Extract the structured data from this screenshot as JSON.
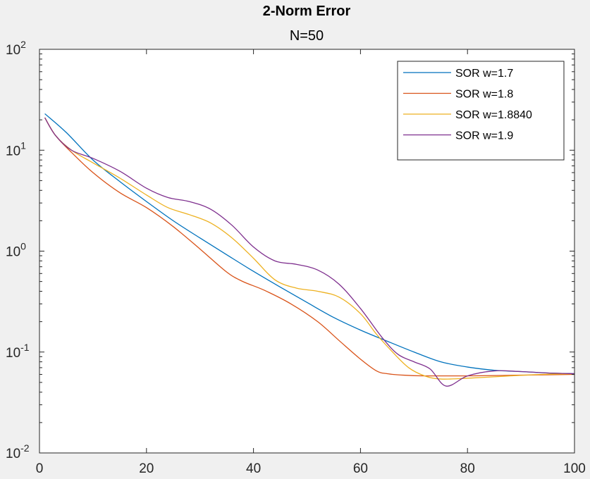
{
  "chart_data": {
    "type": "line",
    "title": "2-Norm Error",
    "subtitle": "N=50",
    "xlabel": "",
    "ylabel": "",
    "xlim": [
      0,
      100
    ],
    "ylim": [
      0.01,
      100
    ],
    "yscale": "log",
    "grid": false,
    "legend_position": "top-right",
    "x_ticks": [
      0,
      20,
      40,
      60,
      80,
      100
    ],
    "y_ticks": [
      {
        "value": 0.01,
        "base": "10",
        "exp": "-2"
      },
      {
        "value": 0.1,
        "base": "10",
        "exp": "-1"
      },
      {
        "value": 1,
        "base": "10",
        "exp": "0"
      },
      {
        "value": 10,
        "base": "10",
        "exp": "1"
      },
      {
        "value": 100,
        "base": "10",
        "exp": "2"
      }
    ],
    "series": [
      {
        "name": "SOR w=1.7",
        "color": "#0072bd",
        "x": [
          1,
          5,
          10,
          15,
          20,
          25,
          30,
          35,
          40,
          45,
          50,
          55,
          60,
          65,
          70,
          75,
          80,
          85,
          90,
          95,
          100
        ],
        "y": [
          23,
          15,
          8,
          4.9,
          3.1,
          2.0,
          1.35,
          0.92,
          0.63,
          0.44,
          0.31,
          0.22,
          0.165,
          0.128,
          0.1,
          0.08,
          0.071,
          0.066,
          0.064,
          0.062,
          0.061
        ]
      },
      {
        "name": "SOR w=1.8",
        "color": "#d95319",
        "x": [
          1,
          3,
          6,
          10,
          15,
          20,
          25,
          30,
          35,
          38,
          42,
          47,
          52,
          56,
          60,
          63,
          65,
          68,
          72,
          80,
          90,
          100
        ],
        "y": [
          21,
          14,
          9.5,
          6,
          3.8,
          2.7,
          1.75,
          1.05,
          0.62,
          0.5,
          0.41,
          0.3,
          0.2,
          0.13,
          0.085,
          0.065,
          0.061,
          0.059,
          0.058,
          0.058,
          0.059,
          0.06
        ]
      },
      {
        "name": "SOR w=1.8840",
        "color": "#edb120",
        "x": [
          1,
          3,
          6,
          10,
          15,
          20,
          24,
          28,
          32,
          36,
          40,
          44,
          48,
          52,
          56,
          60,
          63,
          66,
          69,
          72,
          75,
          80,
          88,
          94,
          100
        ],
        "y": [
          21,
          14,
          10,
          7.5,
          5.3,
          3.6,
          2.7,
          2.3,
          1.9,
          1.35,
          0.85,
          0.52,
          0.43,
          0.4,
          0.35,
          0.24,
          0.15,
          0.1,
          0.07,
          0.058,
          0.054,
          0.055,
          0.058,
          0.06,
          0.061
        ]
      },
      {
        "name": "SOR w=1.9",
        "color": "#7e2f8e",
        "x": [
          1,
          3,
          6,
          10,
          15,
          20,
          24,
          28,
          32,
          36,
          40,
          44,
          48,
          52,
          56,
          60,
          64,
          67,
          70,
          73,
          76,
          80,
          85,
          90,
          95,
          100
        ],
        "y": [
          21,
          14,
          10,
          8.3,
          6.2,
          4.2,
          3.4,
          3.1,
          2.6,
          1.8,
          1.1,
          0.8,
          0.74,
          0.65,
          0.47,
          0.27,
          0.14,
          0.095,
          0.08,
          0.068,
          0.046,
          0.058,
          0.065,
          0.064,
          0.062,
          0.061
        ]
      }
    ]
  }
}
